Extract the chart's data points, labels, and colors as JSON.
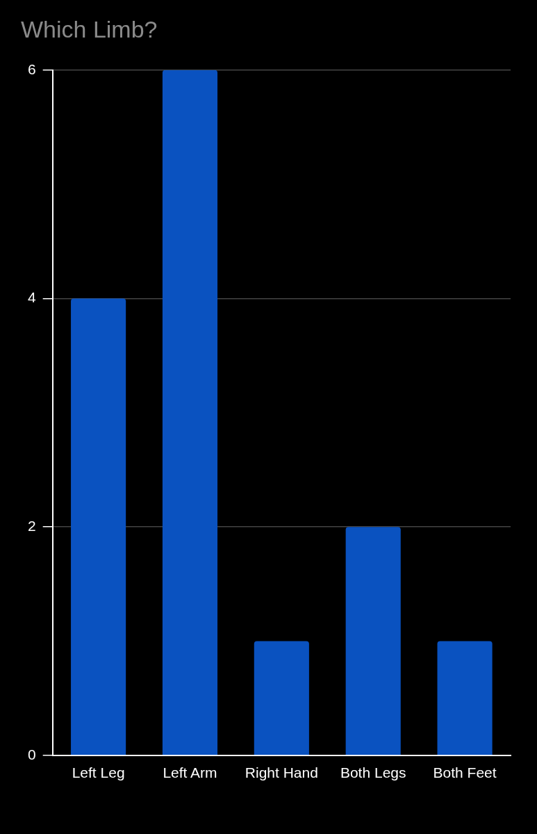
{
  "chart_data": {
    "type": "bar",
    "title": "Which Limb?",
    "categories": [
      "Left Leg",
      "Left Arm",
      "Right Hand",
      "Both Legs",
      "Both Feet"
    ],
    "values": [
      4,
      6,
      1,
      2,
      1
    ],
    "color": "#0a52c0",
    "ylim": [
      0,
      6
    ],
    "yticks": [
      0,
      2,
      4,
      6
    ],
    "grid": "y",
    "legend": false
  }
}
